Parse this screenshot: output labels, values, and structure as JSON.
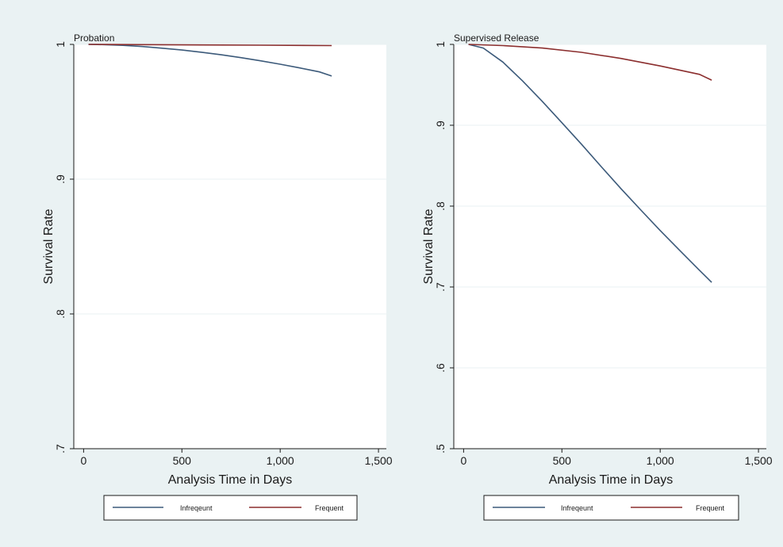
{
  "colors": {
    "figure_bg": "#eaf2f3",
    "panel_bg": "#ffffff",
    "grid": "#eaf2f3",
    "infrequent": "#3c5a7a",
    "frequent": "#8b2e2e"
  },
  "chart_data": [
    {
      "type": "line",
      "title": "Probation",
      "xlabel": "Analysis Time in Days",
      "ylabel": "Survival Rate",
      "xlim": [
        -50,
        1540
      ],
      "ylim": [
        0.7,
        1.0
      ],
      "x_ticks": [
        0,
        500,
        1000,
        1500
      ],
      "x_tick_labels": [
        "0",
        "500",
        "1,000",
        "1,500"
      ],
      "y_ticks": [
        0.7,
        0.8,
        0.9,
        1.0
      ],
      "y_tick_labels": [
        ".7",
        ".8",
        ".9",
        "1"
      ],
      "grid": true,
      "legend_position": "bottom",
      "series": [
        {
          "name": "Infrequent",
          "color": "#3c5a7a",
          "x": [
            25,
            100,
            200,
            300,
            400,
            500,
            600,
            700,
            800,
            900,
            1000,
            1100,
            1200,
            1262
          ],
          "y": [
            1.0,
            0.9998,
            0.9993,
            0.9984,
            0.9972,
            0.9958,
            0.9942,
            0.9923,
            0.9902,
            0.9878,
            0.9853,
            0.9825,
            0.9796,
            0.9765
          ]
        },
        {
          "name": "Frequent",
          "color": "#8b2e2e",
          "x": [
            25,
            300,
            600,
            900,
            1262
          ],
          "y": [
            1.0,
            0.9998,
            0.9996,
            0.9994,
            0.9991
          ]
        }
      ]
    },
    {
      "type": "line",
      "title": "Supervised Release",
      "xlabel": "Analysis Time in Days",
      "ylabel": "Survival Rate",
      "xlim": [
        -50,
        1540
      ],
      "ylim": [
        0.5,
        1.0
      ],
      "x_ticks": [
        0,
        500,
        1000,
        1500
      ],
      "x_tick_labels": [
        "0",
        "500",
        "1,000",
        "1,500"
      ],
      "y_ticks": [
        0.5,
        0.6,
        0.7,
        0.8,
        0.9,
        1.0
      ],
      "y_tick_labels": [
        ".5",
        ".6",
        ".7",
        ".8",
        ".9",
        "1"
      ],
      "grid": true,
      "legend_position": "bottom",
      "series": [
        {
          "name": "Infrequent",
          "color": "#3c5a7a",
          "x": [
            25,
            100,
            200,
            300,
            400,
            500,
            600,
            700,
            800,
            900,
            1000,
            1100,
            1200,
            1262
          ],
          "y": [
            1.0,
            0.9955,
            0.9781,
            0.9548,
            0.9296,
            0.9031,
            0.8764,
            0.8489,
            0.8218,
            0.7956,
            0.7698,
            0.745,
            0.7207,
            0.7057
          ]
        },
        {
          "name": "Frequent",
          "color": "#8b2e2e",
          "x": [
            25,
            200,
            400,
            600,
            800,
            1000,
            1200,
            1262
          ],
          "y": [
            1.0,
            0.9985,
            0.9955,
            0.9902,
            0.9826,
            0.9733,
            0.9629,
            0.9558
          ]
        }
      ]
    }
  ],
  "legend": {
    "infrequent_label": "Infreqeunt",
    "frequent_label": "Frequent"
  }
}
